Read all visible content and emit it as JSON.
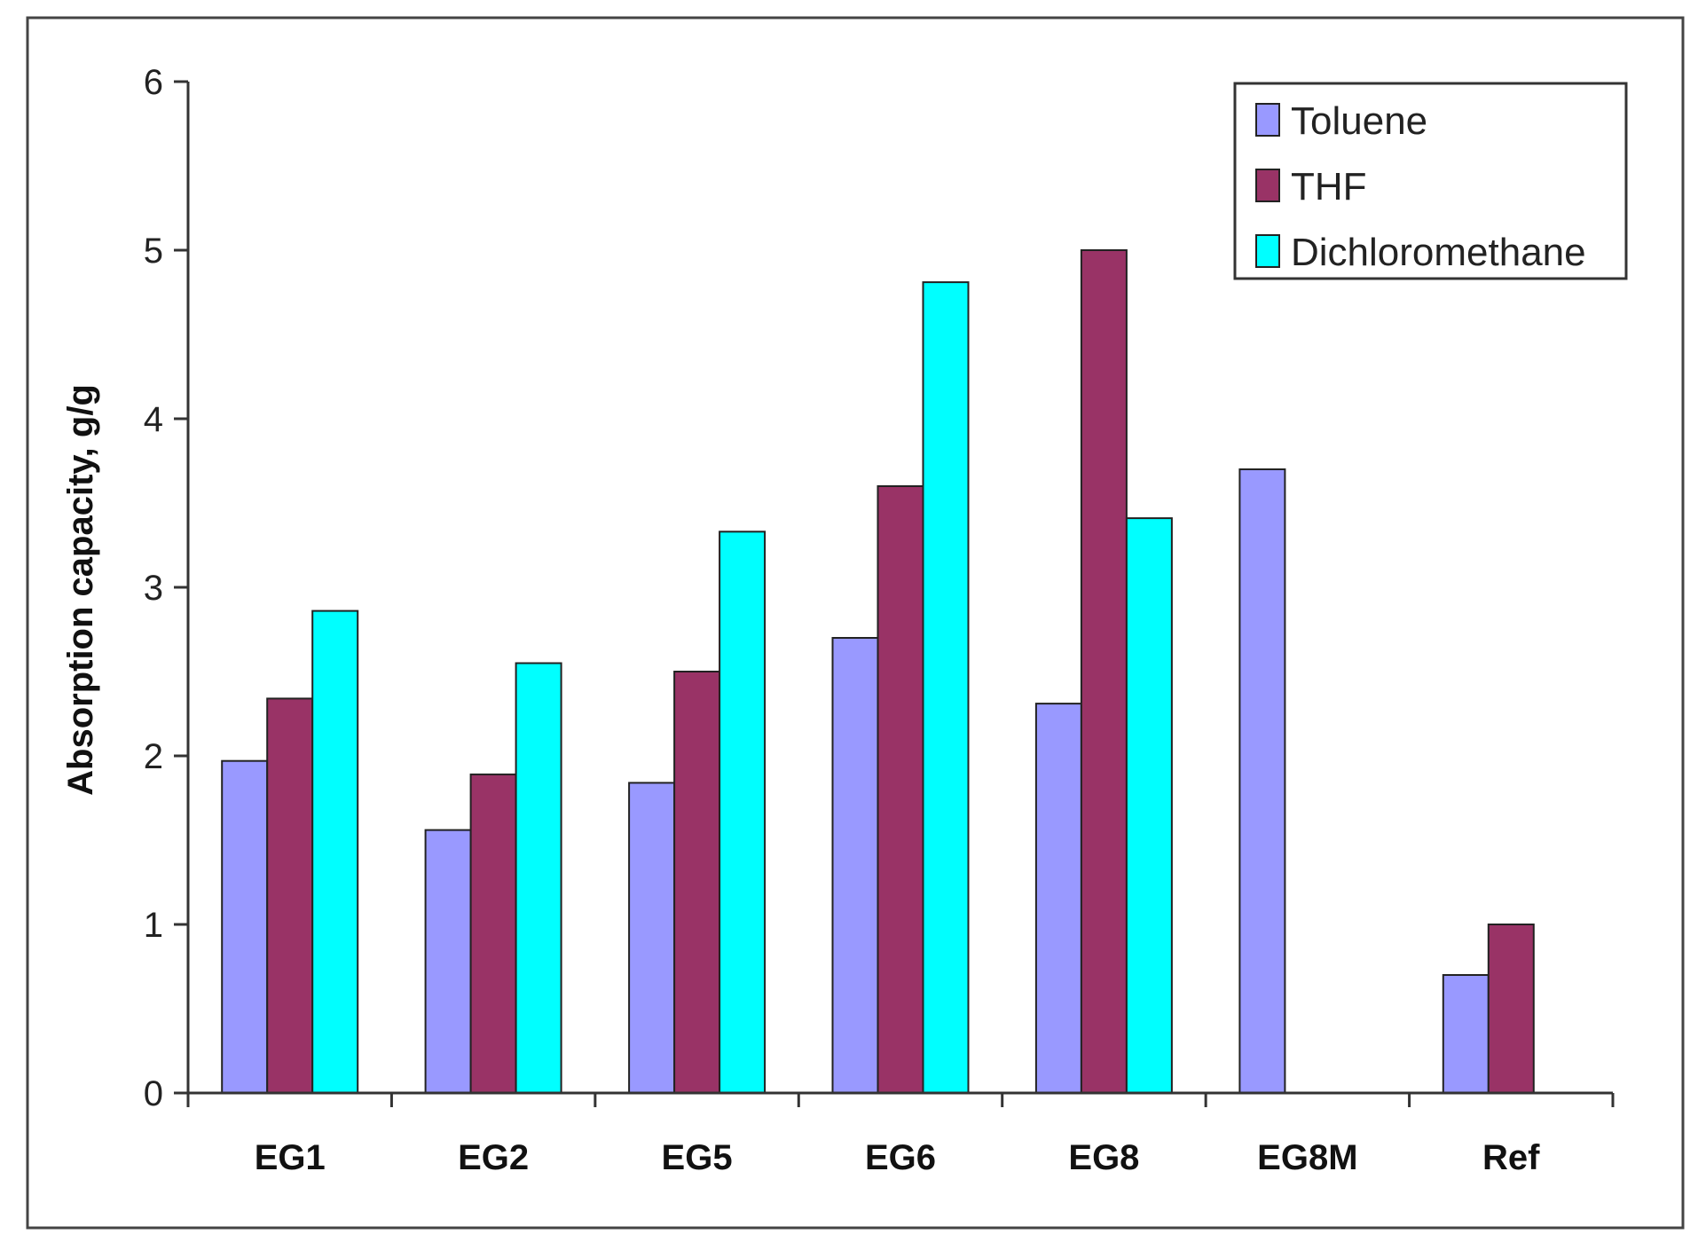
{
  "chart_data": {
    "type": "bar",
    "title": "",
    "xlabel": "",
    "ylabel": "Absorption capacity, g/g",
    "ylim": [
      0,
      6
    ],
    "yticks": [
      "0",
      "1",
      "2",
      "3",
      "4",
      "5",
      "6"
    ],
    "grid": false,
    "legend_position": "top-right",
    "categories": [
      "EG1",
      "EG2",
      "EG5",
      "EG6",
      "EG8",
      "EG8M",
      "Ref"
    ],
    "series": [
      {
        "name": "Toluene",
        "color": "#9999ff",
        "values": [
          1.97,
          1.56,
          1.84,
          2.7,
          2.31,
          3.7,
          0.7
        ]
      },
      {
        "name": "THF",
        "color": "#993366",
        "values": [
          2.34,
          1.89,
          2.5,
          3.6,
          5.0,
          null,
          1.0
        ]
      },
      {
        "name": "Dichloromethane",
        "color": "#00ffff",
        "values": [
          2.86,
          2.55,
          3.33,
          4.81,
          3.41,
          null,
          null
        ]
      }
    ]
  }
}
